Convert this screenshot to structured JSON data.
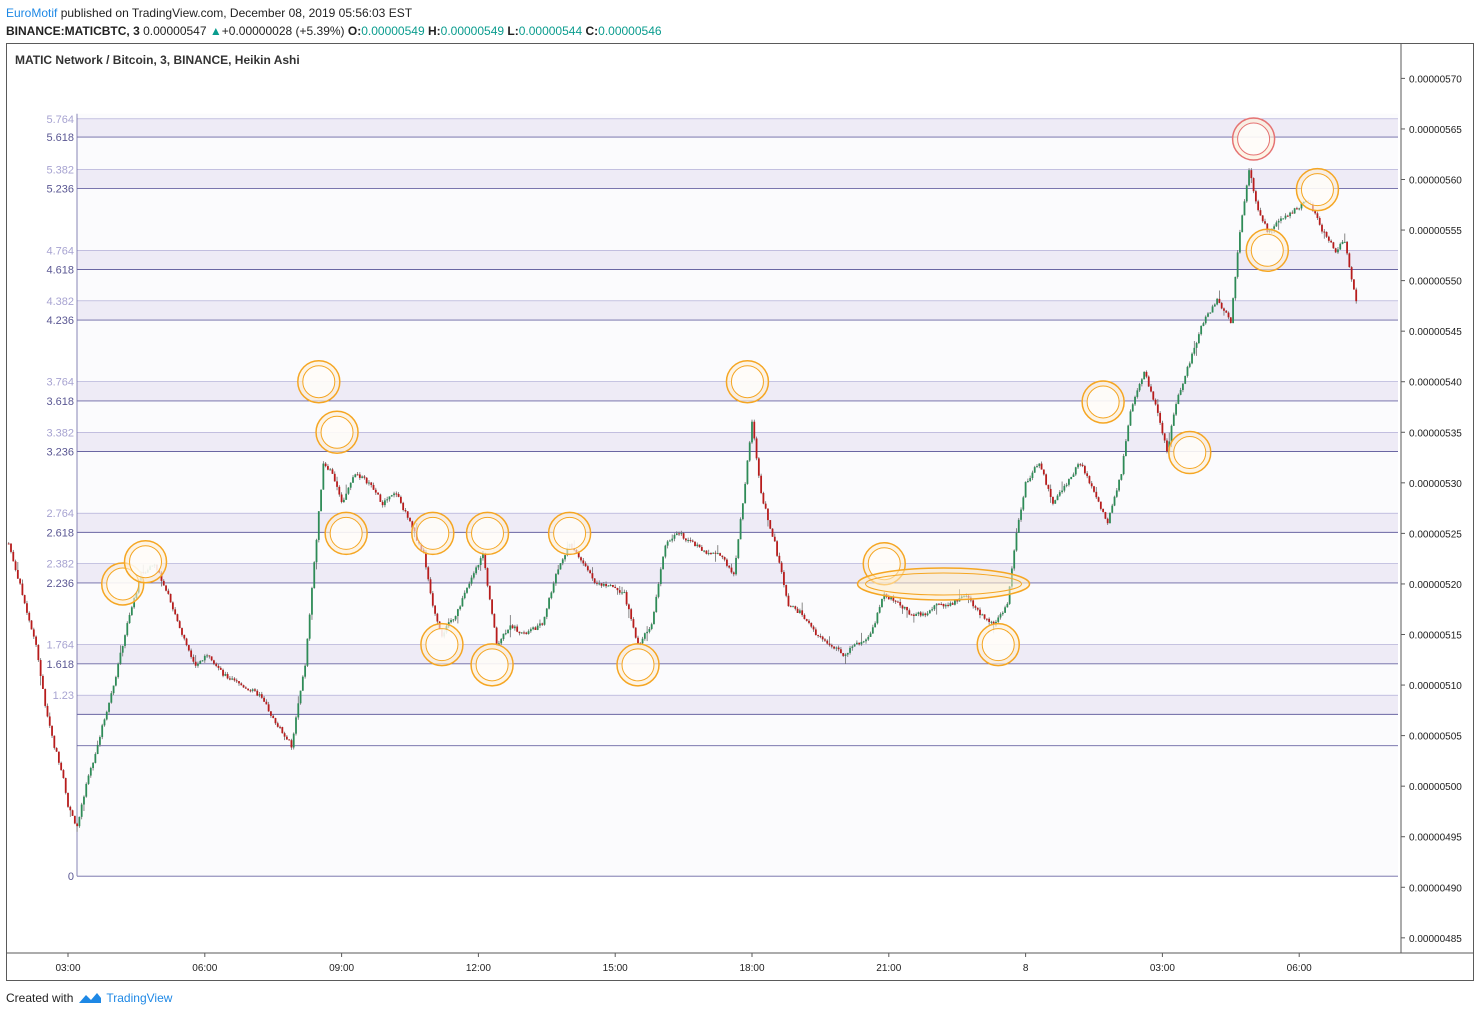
{
  "header": {
    "author": "EuroMotif",
    "published_text": " published on TradingView.com, December 08, 2019 05:56:03 EST",
    "symbol": "BINANCE:MATICBTC, 3",
    "last_price": "0.00000547",
    "change_arrow": "▲",
    "change": "+0.00000028 (+5.39%)",
    "o_label": "O:",
    "o_value": "0.00000549",
    "h_label": "H:",
    "h_value": "0.00000549",
    "l_label": "L:",
    "l_value": "0.00000544",
    "c_label": "C:",
    "c_value": "0.00000546"
  },
  "legend": "MATIC Network / Bitcoin, 3, BINANCE, Heikin Ashi",
  "footer": {
    "created_with": "Created with",
    "brand": "TradingView",
    "logo_icon": "tradingview-logo-icon"
  },
  "colors": {
    "up": "#2e8b57",
    "down": "#b71c1c",
    "wick": "#6d6d6d",
    "fib_line": "#6a66a3",
    "fib_band": "#eeebf6",
    "fib_band2": "#f6f5fb",
    "fib_label_main": "#5a5793",
    "fib_label_faint": "#a7a3d1",
    "circle_orange": "#f5a623",
    "circle_red": "#e57373"
  },
  "chart_data": {
    "type": "candlestick",
    "style": "Heikin Ashi",
    "title": "MATIC Network / Bitcoin, 3, BINANCE, Heikin Ashi",
    "ylim": [
      4.835e-06,
      5.735e-06
    ],
    "y_ticks": [
      "0.00000570",
      "0.00000565",
      "0.00000560",
      "0.00000555",
      "0.00000550",
      "0.00000545",
      "0.00000540",
      "0.00000535",
      "0.00000530",
      "0.00000525",
      "0.00000520",
      "0.00000515",
      "0.00000510",
      "0.00000505",
      "0.00000500",
      "0.00000495",
      "0.00000490",
      "0.00000485"
    ],
    "x_ticks": [
      "03:00",
      "06:00",
      "09:00",
      "12:00",
      "15:00",
      "18:00",
      "21:00",
      "8",
      "03:00",
      "06:00"
    ],
    "x_tick_hours": [
      3,
      6,
      9,
      12,
      15,
      18,
      21,
      24,
      27,
      30
    ],
    "fib_levels": [
      {
        "label": "5.764",
        "price": 5.66e-06,
        "faint": true
      },
      {
        "label": "5.618",
        "price": 5.642e-06,
        "faint": false
      },
      {
        "label": "5.382",
        "price": 5.61e-06,
        "faint": true
      },
      {
        "label": "5.236",
        "price": 5.591e-06,
        "faint": false
      },
      {
        "label": "4.764",
        "price": 5.53e-06,
        "faint": true
      },
      {
        "label": "4.618",
        "price": 5.511e-06,
        "faint": false
      },
      {
        "label": "4.382",
        "price": 5.48e-06,
        "faint": true
      },
      {
        "label": "4.236",
        "price": 5.461e-06,
        "faint": false
      },
      {
        "label": "3.764",
        "price": 5.4e-06,
        "faint": true
      },
      {
        "label": "3.618",
        "price": 5.381e-06,
        "faint": false
      },
      {
        "label": "3.382",
        "price": 5.35e-06,
        "faint": true
      },
      {
        "label": "3.236",
        "price": 5.331e-06,
        "faint": false
      },
      {
        "label": "2.764",
        "price": 5.27e-06,
        "faint": true
      },
      {
        "label": "2.618",
        "price": 5.251e-06,
        "faint": false
      },
      {
        "label": "2.382",
        "price": 5.22e-06,
        "faint": true
      },
      {
        "label": "2.236",
        "price": 5.201e-06,
        "faint": false
      },
      {
        "label": "1.764",
        "price": 5.14e-06,
        "faint": true
      },
      {
        "label": "1.618",
        "price": 5.121e-06,
        "faint": false
      },
      {
        "label": "1.23",
        "price": 5.09e-06,
        "faint": true
      },
      {
        "label": "",
        "price": 5.071e-06,
        "faint": false
      },
      {
        "label": "",
        "price": 5.04e-06,
        "faint": false
      },
      {
        "label": "0",
        "price": 4.911e-06,
        "faint": false
      }
    ],
    "price_path": [
      [
        1.7,
        5.24e-06
      ],
      [
        2.0,
        5.19e-06
      ],
      [
        2.3,
        5.14e-06
      ],
      [
        2.5,
        5.08e-06
      ],
      [
        2.7,
        5.04e-06
      ],
      [
        2.9,
        5.01e-06
      ],
      [
        3.0,
        4.98e-06
      ],
      [
        3.2,
        4.96e-06
      ],
      [
        3.4,
        5e-06
      ],
      [
        3.7,
        5.05e-06
      ],
      [
        4.0,
        5.1e-06
      ],
      [
        4.3,
        5.16e-06
      ],
      [
        4.6,
        5.21e-06
      ],
      [
        4.9,
        5.22e-06
      ],
      [
        5.2,
        5.19e-06
      ],
      [
        5.5,
        5.15e-06
      ],
      [
        5.8,
        5.12e-06
      ],
      [
        6.1,
        5.13e-06
      ],
      [
        6.4,
        5.11e-06
      ],
      [
        6.8,
        5.1e-06
      ],
      [
        7.2,
        5.09e-06
      ],
      [
        7.6,
        5.06e-06
      ],
      [
        7.9,
        5.04e-06
      ],
      [
        8.2,
        5.12e-06
      ],
      [
        8.4,
        5.22e-06
      ],
      [
        8.6,
        5.32e-06
      ],
      [
        8.8,
        5.31e-06
      ],
      [
        9.0,
        5.28e-06
      ],
      [
        9.3,
        5.31e-06
      ],
      [
        9.6,
        5.3e-06
      ],
      [
        9.9,
        5.28e-06
      ],
      [
        10.2,
        5.29e-06
      ],
      [
        10.5,
        5.26e-06
      ],
      [
        10.8,
        5.23e-06
      ],
      [
        11.0,
        5.18e-06
      ],
      [
        11.2,
        5.15e-06
      ],
      [
        11.5,
        5.17e-06
      ],
      [
        11.8,
        5.2e-06
      ],
      [
        12.1,
        5.23e-06
      ],
      [
        12.4,
        5.14e-06
      ],
      [
        12.7,
        5.16e-06
      ],
      [
        13.0,
        5.15e-06
      ],
      [
        13.4,
        5.16e-06
      ],
      [
        13.7,
        5.21e-06
      ],
      [
        14.0,
        5.24e-06
      ],
      [
        14.3,
        5.22e-06
      ],
      [
        14.6,
        5.2e-06
      ],
      [
        14.9,
        5.2e-06
      ],
      [
        15.2,
        5.19e-06
      ],
      [
        15.5,
        5.14e-06
      ],
      [
        15.8,
        5.16e-06
      ],
      [
        16.1,
        5.24e-06
      ],
      [
        16.4,
        5.25e-06
      ],
      [
        16.7,
        5.24e-06
      ],
      [
        17.0,
        5.23e-06
      ],
      [
        17.3,
        5.23e-06
      ],
      [
        17.6,
        5.21e-06
      ],
      [
        17.8,
        5.28e-06
      ],
      [
        18.0,
        5.36e-06
      ],
      [
        18.2,
        5.29e-06
      ],
      [
        18.5,
        5.24e-06
      ],
      [
        18.8,
        5.18e-06
      ],
      [
        19.1,
        5.17e-06
      ],
      [
        19.4,
        5.15e-06
      ],
      [
        19.7,
        5.14e-06
      ],
      [
        20.0,
        5.13e-06
      ],
      [
        20.3,
        5.14e-06
      ],
      [
        20.6,
        5.15e-06
      ],
      [
        20.9,
        5.19e-06
      ],
      [
        21.2,
        5.18e-06
      ],
      [
        21.5,
        5.17e-06
      ],
      [
        21.8,
        5.17e-06
      ],
      [
        22.1,
        5.18e-06
      ],
      [
        22.4,
        5.18e-06
      ],
      [
        22.7,
        5.19e-06
      ],
      [
        23.0,
        5.17e-06
      ],
      [
        23.3,
        5.16e-06
      ],
      [
        23.6,
        5.18e-06
      ],
      [
        23.8,
        5.25e-06
      ],
      [
        24.0,
        5.3e-06
      ],
      [
        24.3,
        5.32e-06
      ],
      [
        24.6,
        5.28e-06
      ],
      [
        24.9,
        5.3e-06
      ],
      [
        25.2,
        5.32e-06
      ],
      [
        25.5,
        5.29e-06
      ],
      [
        25.8,
        5.26e-06
      ],
      [
        26.1,
        5.31e-06
      ],
      [
        26.3,
        5.37e-06
      ],
      [
        26.6,
        5.41e-06
      ],
      [
        26.9,
        5.37e-06
      ],
      [
        27.1,
        5.33e-06
      ],
      [
        27.3,
        5.38e-06
      ],
      [
        27.6,
        5.42e-06
      ],
      [
        27.9,
        5.46e-06
      ],
      [
        28.2,
        5.48e-06
      ],
      [
        28.5,
        5.46e-06
      ],
      [
        28.7,
        5.55e-06
      ],
      [
        28.9,
        5.61e-06
      ],
      [
        29.1,
        5.57e-06
      ],
      [
        29.3,
        5.55e-06
      ],
      [
        29.6,
        5.56e-06
      ],
      [
        29.9,
        5.57e-06
      ],
      [
        30.2,
        5.58e-06
      ],
      [
        30.5,
        5.55e-06
      ],
      [
        30.8,
        5.53e-06
      ],
      [
        31.0,
        5.54e-06
      ],
      [
        31.2,
        5.49e-06
      ],
      [
        31.3,
        5.47e-06
      ]
    ],
    "annotations": [
      {
        "type": "circle",
        "color": "orange",
        "x": 4.2,
        "price": 5.2e-06
      },
      {
        "type": "circle",
        "color": "orange",
        "x": 4.7,
        "price": 5.222e-06
      },
      {
        "type": "circle",
        "color": "orange",
        "x": 8.5,
        "price": 5.4e-06
      },
      {
        "type": "circle",
        "color": "orange",
        "x": 8.9,
        "price": 5.35e-06
      },
      {
        "type": "circle",
        "color": "orange",
        "x": 9.1,
        "price": 5.25e-06
      },
      {
        "type": "circle",
        "color": "orange",
        "x": 11.0,
        "price": 5.25e-06
      },
      {
        "type": "circle",
        "color": "orange",
        "x": 11.2,
        "price": 5.14e-06
      },
      {
        "type": "circle",
        "color": "orange",
        "x": 12.2,
        "price": 5.25e-06
      },
      {
        "type": "circle",
        "color": "orange",
        "x": 12.3,
        "price": 5.12e-06
      },
      {
        "type": "circle",
        "color": "orange",
        "x": 14.0,
        "price": 5.25e-06
      },
      {
        "type": "circle",
        "color": "orange",
        "x": 15.5,
        "price": 5.12e-06
      },
      {
        "type": "circle",
        "color": "orange",
        "x": 17.9,
        "price": 5.4e-06
      },
      {
        "type": "circle",
        "color": "orange",
        "x": 20.9,
        "price": 5.22e-06
      },
      {
        "type": "ellipse",
        "color": "orange",
        "x": 22.2,
        "price": 5.2e-06
      },
      {
        "type": "circle",
        "color": "orange",
        "x": 23.4,
        "price": 5.14e-06
      },
      {
        "type": "circle",
        "color": "orange",
        "x": 25.7,
        "price": 5.38e-06
      },
      {
        "type": "circle",
        "color": "orange",
        "x": 27.6,
        "price": 5.33e-06
      },
      {
        "type": "circle",
        "color": "red",
        "x": 29.0,
        "price": 5.64e-06
      },
      {
        "type": "circle",
        "color": "orange",
        "x": 29.3,
        "price": 5.53e-06
      },
      {
        "type": "circle",
        "color": "orange",
        "x": 30.4,
        "price": 5.59e-06
      }
    ]
  }
}
